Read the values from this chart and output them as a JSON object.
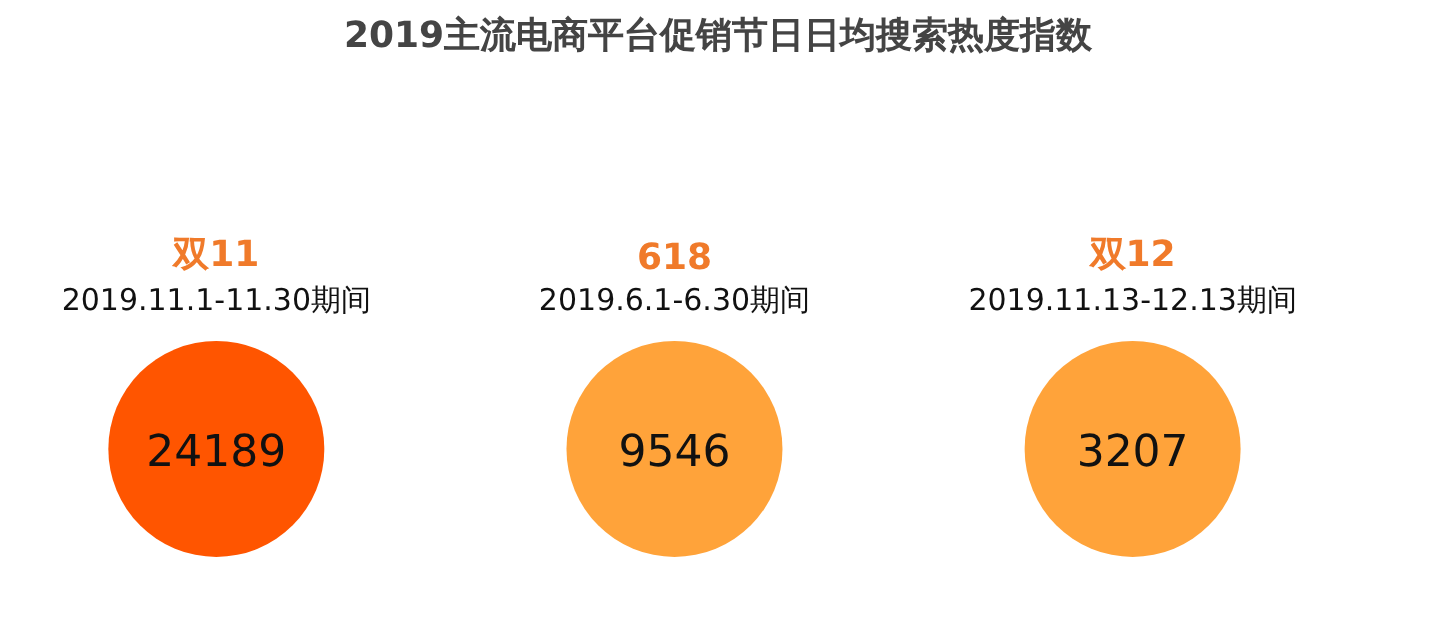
{
  "chart_data": {
    "type": "other",
    "title": "2019主流电商平台促销节日日均搜索热度指数",
    "categories": [
      "双11",
      "618",
      "双12"
    ],
    "annotations": [
      "2019.11.1-11.30期间",
      "2019.6.1-6.30期间",
      "2019.11.13-12.13期间"
    ],
    "values": [
      24189,
      9546,
      3207
    ],
    "colors": [
      "#ff5500",
      "#ffa33a",
      "#ffa33a"
    ],
    "data_labels": true
  }
}
